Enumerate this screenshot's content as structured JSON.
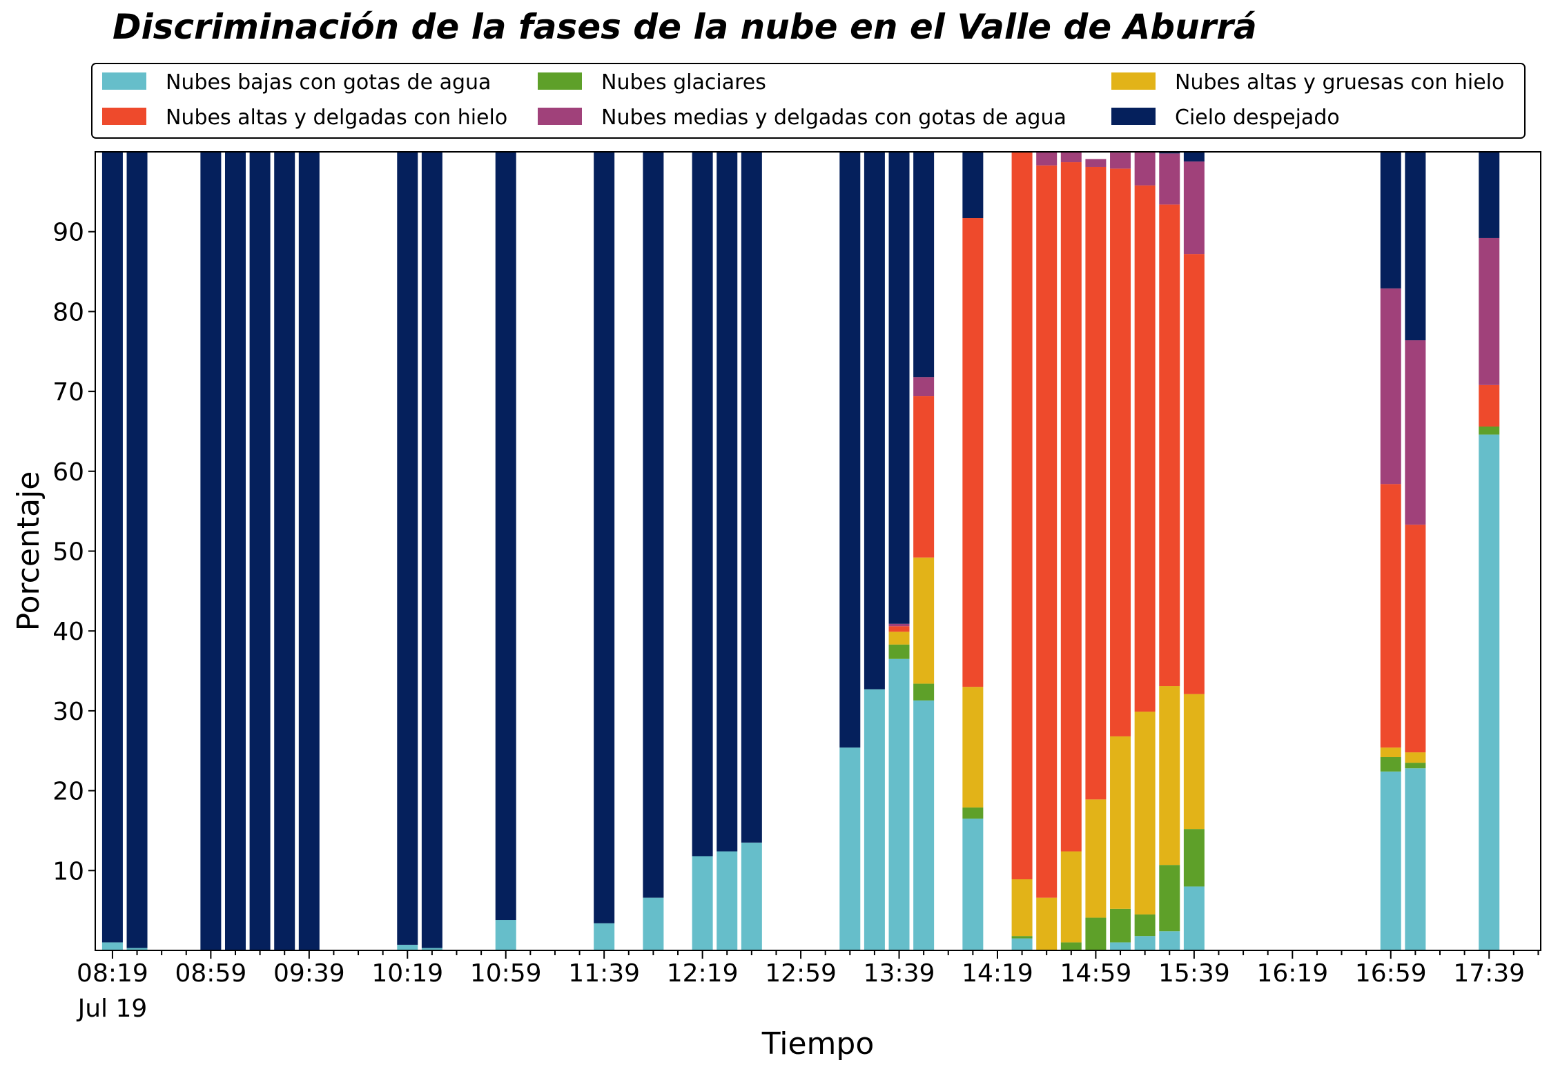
{
  "chart_data": {
    "type": "bar",
    "stacked": true,
    "title": "Discriminación de la fases de la nube en el Valle de Aburrá",
    "xlabel": "Tiempo",
    "ylabel": "Porcentaje",
    "ylim": [
      0,
      100
    ],
    "yticks": [
      10,
      20,
      30,
      40,
      50,
      60,
      70,
      80,
      90
    ],
    "x_tick_labels": [
      "08:19",
      "08:59",
      "09:39",
      "10:19",
      "10:59",
      "11:39",
      "12:19",
      "12:59",
      "13:39",
      "14:19",
      "14:59",
      "15:39",
      "16:19",
      "16:59",
      "17:39"
    ],
    "x_tick_sublabel": "Jul 19",
    "x_range": [
      "08:12",
      "18:00"
    ],
    "bar_interval_minutes": 10,
    "grid": false,
    "legend": {
      "placement": "top",
      "columns": 3
    },
    "x": [
      "08:19",
      "08:29",
      "08:59",
      "09:09",
      "09:19",
      "09:29",
      "09:39",
      "10:19",
      "10:29",
      "10:59",
      "11:39",
      "11:59",
      "12:19",
      "12:29",
      "12:39",
      "13:19",
      "13:29",
      "13:39",
      "13:49",
      "14:09",
      "14:29",
      "14:39",
      "14:49",
      "14:59",
      "15:09",
      "15:19",
      "15:29",
      "15:39",
      "16:59",
      "17:09",
      "17:39"
    ],
    "series": [
      {
        "name": "Nubes bajas con gotas de agua",
        "color": "#66BECA",
        "values": [
          1,
          0.3,
          0,
          0,
          0,
          0,
          0,
          0.7,
          0.3,
          3.8,
          3.4,
          6.6,
          11.8,
          12.4,
          13.5,
          25.4,
          32.7,
          36.5,
          31.3,
          16.5,
          1.5,
          0,
          0,
          0,
          1,
          1.8,
          2.4,
          8,
          22.4,
          22.8,
          64.6
        ]
      },
      {
        "name": "Nubes glaciares",
        "color": "#5EA029",
        "values": [
          0,
          0,
          0,
          0,
          0,
          0,
          0,
          0,
          0,
          0,
          0,
          0,
          0,
          0,
          0,
          0,
          0,
          1.8,
          2.1,
          1.4,
          0.3,
          0,
          1,
          4.1,
          4.2,
          2.7,
          8.3,
          7.2,
          1.8,
          0.7,
          1
        ]
      },
      {
        "name": "Nubes altas y gruesas con hielo",
        "color": "#E2B318",
        "values": [
          0,
          0,
          0,
          0,
          0,
          0,
          0,
          0,
          0,
          0,
          0,
          0,
          0,
          0,
          0,
          0,
          0,
          1.6,
          15.8,
          15.1,
          7.1,
          6.6,
          11.4,
          14.8,
          21.6,
          25.4,
          22.4,
          16.9,
          1.2,
          1.3,
          0
        ]
      },
      {
        "name": "Nubes altas y delgadas con hielo",
        "color": "#EE4A2C",
        "values": [
          0,
          0,
          0,
          0,
          0,
          0,
          0,
          0,
          0,
          0,
          0,
          0,
          0,
          0,
          0,
          0,
          0,
          0.7,
          20.2,
          58.7,
          91.1,
          91.7,
          86.3,
          79.2,
          71.1,
          65.9,
          60.3,
          55.1,
          33,
          28.5,
          5.2
        ]
      },
      {
        "name": "Nubes medias y delgadas con gotas de agua",
        "color": "#A0417A",
        "values": [
          0,
          0,
          0,
          0,
          0,
          0,
          0,
          0,
          0,
          0,
          0,
          0,
          0,
          0,
          0,
          0,
          0,
          0.3,
          2.4,
          0,
          0,
          1.7,
          1.3,
          1,
          2,
          4.2,
          6.4,
          11.6,
          24.5,
          23.1,
          18.4
        ]
      },
      {
        "name": "Cielo despejado",
        "color": "#05205C",
        "values": [
          99,
          99.7,
          100,
          100,
          100,
          100,
          100,
          99.3,
          99.7,
          96.2,
          96.6,
          93.4,
          88.2,
          87.6,
          86.5,
          74.6,
          67.3,
          59.1,
          28.2,
          8.3,
          0,
          0,
          0,
          0,
          0,
          0,
          0.6,
          1.2,
          17.1,
          23.6,
          10.8
        ]
      }
    ]
  }
}
